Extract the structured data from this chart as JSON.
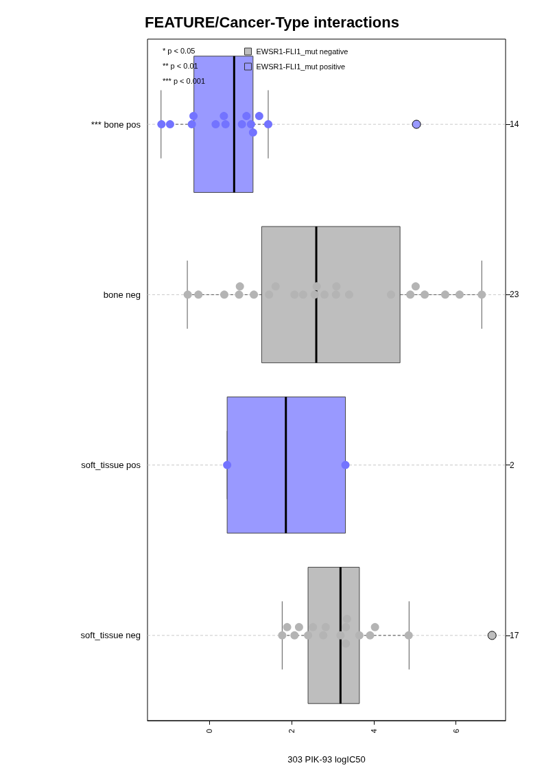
{
  "chart_data": {
    "type": "box",
    "title": "FEATURE/Cancer-Type interactions",
    "xlabel": "303 PIK-93 logIC50",
    "orientation": "horizontal",
    "categories": [
      "*** bone pos",
      "bone neg",
      "soft_tissue pos",
      "soft_tissue neg"
    ],
    "y2_categories": [
      "14",
      "23",
      "2",
      "17"
    ],
    "xlim": [
      -1.51,
      7.21
    ],
    "xticks": [
      0,
      2,
      4,
      6
    ],
    "grid": "y",
    "legend": "top left",
    "marker": "circle",
    "annotations": [
      "* p < 0.05",
      "** p < 0.01",
      "*** p < 0.001"
    ],
    "series": [
      {
        "name": "EWSR1-FLI1_mut negative",
        "color": "#bebebe",
        "boxes": [
          null,
          {
            "low": -0.54,
            "q1": 1.27,
            "median": 2.6,
            "q3": 4.64,
            "high": 6.63
          },
          null,
          {
            "low": 1.77,
            "q1": 2.4,
            "median": 3.19,
            "q3": 3.65,
            "high": 4.86,
            "outliers": [
              6.88
            ]
          }
        ]
      },
      {
        "name": "EWSR1-FLI1_mut positive",
        "color": "#9999ff",
        "boxes": [
          {
            "low": -1.18,
            "q1": -0.38,
            "median": 0.6,
            "q3": 1.06,
            "high": 1.43,
            "outliers": [
              5.04
            ]
          },
          null,
          {
            "low": 0.43,
            "q1": 0.43,
            "median": 1.86,
            "q3": 3.31,
            "high": 3.31
          },
          null
        ]
      },
      {
        "type": "scatter",
        "color": "#7373ff",
        "x": [
          "*** bone pos",
          "*** bone pos",
          "*** bone pos",
          "*** bone pos",
          "*** bone pos",
          "*** bone pos",
          "*** bone pos",
          "*** bone pos",
          "*** bone pos",
          "*** bone pos",
          "*** bone pos",
          "*** bone pos",
          "*** bone pos",
          "soft_tissue pos",
          "soft_tissue pos"
        ],
        "values": [
          -1.17,
          -0.96,
          -0.43,
          -0.39,
          0.15,
          0.35,
          0.39,
          0.79,
          0.9,
          1.01,
          1.06,
          1.21,
          1.43,
          0.43,
          3.31
        ]
      },
      {
        "type": "scatter",
        "color": "#b4b4b4",
        "x": [
          "bone neg",
          "bone neg",
          "bone neg",
          "bone neg",
          "bone neg",
          "bone neg",
          "bone neg",
          "bone neg",
          "bone neg",
          "bone neg",
          "bone neg",
          "bone neg",
          "bone neg",
          "bone neg",
          "bone neg",
          "bone neg",
          "bone neg",
          "bone neg",
          "bone neg",
          "bone neg",
          "bone neg",
          "bone neg",
          "bone neg",
          "soft_tissue neg",
          "soft_tissue neg",
          "soft_tissue neg",
          "soft_tissue neg",
          "soft_tissue neg",
          "soft_tissue neg",
          "soft_tissue neg",
          "soft_tissue neg",
          "soft_tissue neg",
          "soft_tissue neg",
          "soft_tissue neg",
          "soft_tissue neg",
          "soft_tissue neg",
          "soft_tissue neg",
          "soft_tissue neg",
          "soft_tissue neg"
        ],
        "values": [
          -0.53,
          -0.27,
          0.36,
          0.72,
          0.74,
          1.08,
          1.45,
          1.61,
          2.07,
          2.28,
          2.56,
          2.61,
          2.8,
          3.08,
          3.09,
          3.4,
          4.42,
          4.89,
          5.02,
          5.24,
          5.74,
          6.09,
          6.63,
          1.77,
          1.89,
          2.07,
          2.18,
          2.4,
          2.52,
          2.77,
          2.83,
          3.19,
          3.32,
          3.32,
          3.35,
          3.65,
          3.91,
          4.03,
          4.85
        ]
      }
    ]
  }
}
